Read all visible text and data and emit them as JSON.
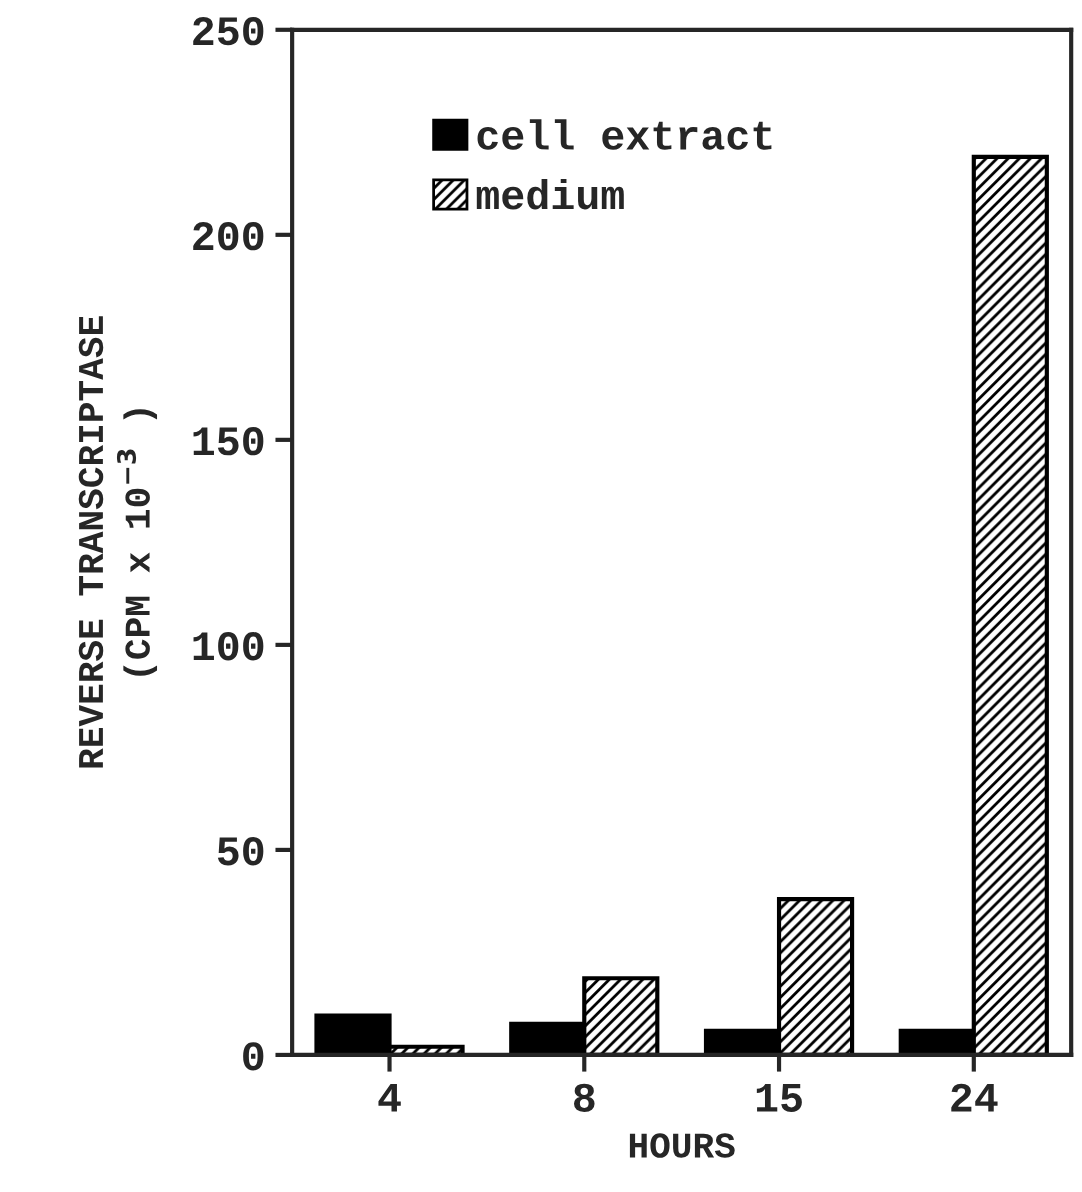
{
  "chart_data": {
    "type": "bar",
    "xlabel": "HOURS",
    "ylabel": "REVERSE TRANSCRIPTASE\n(CPM x 10$^{−3}$ )",
    "categories": [
      "4",
      "8",
      "15",
      "24"
    ],
    "series": [
      {
        "name": "cell extract",
        "color": "#000000",
        "values": [
          9.6,
          7.6,
          5.9,
          5.9
        ]
      },
      {
        "name": "medium",
        "color": "#000000",
        "values": [
          2,
          18.7,
          38,
          219
        ]
      }
    ],
    "ylim": [
      0,
      250
    ],
    "yticks": [
      0,
      50,
      100,
      150,
      200,
      250
    ],
    "grid": false,
    "legend": "top left"
  }
}
